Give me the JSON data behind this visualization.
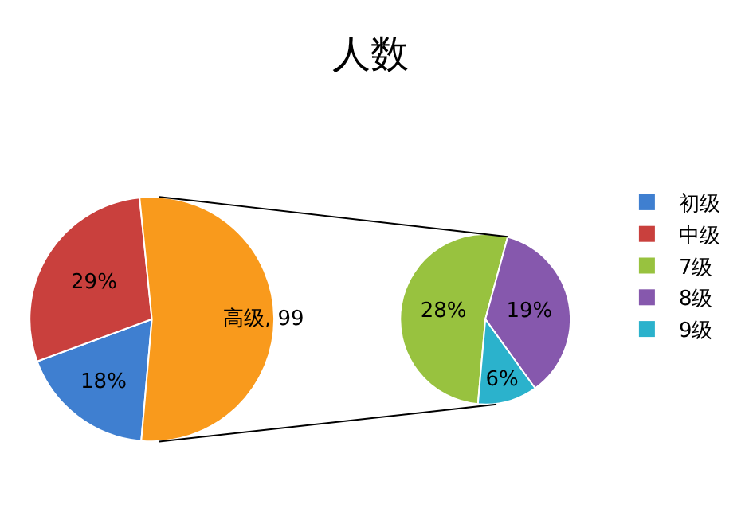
{
  "chart_data": [
    {
      "type": "pie",
      "title": "人数",
      "categories": [
        "初级",
        "中级",
        null
      ],
      "values": [
        18,
        29,
        53
      ],
      "colors": [
        "#3f7fd0",
        "#c9403d",
        "#f99a1c"
      ],
      "value_labels": [
        "18%",
        "29%",
        null
      ],
      "annotations": [
        "高级, 99"
      ],
      "legend": "right"
    },
    {
      "type": "pie",
      "categories": [
        "7级",
        "8级",
        "9级"
      ],
      "values": [
        28,
        19,
        6
      ],
      "colors": [
        "#98c23f",
        "#8658ad",
        "#2bb2cc"
      ],
      "value_labels": [
        "28%",
        "19%",
        "6%"
      ],
      "legend": "right"
    }
  ]
}
